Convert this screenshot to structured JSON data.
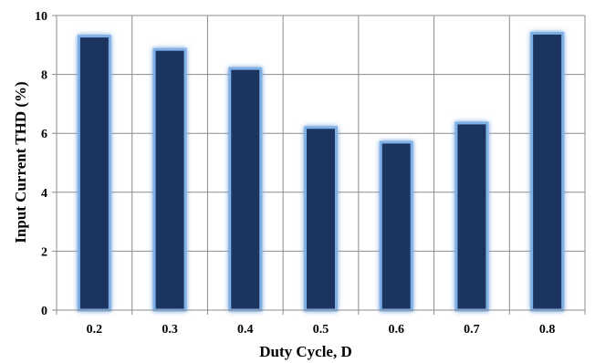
{
  "chart_data": {
    "type": "bar",
    "categories": [
      "0.2",
      "0.3",
      "0.4",
      "0.5",
      "0.6",
      "0.7",
      "0.8"
    ],
    "values": [
      9.3,
      8.85,
      8.2,
      6.2,
      5.7,
      6.35,
      9.4
    ],
    "xlabel": "Duty Cycle, D",
    "ylabel": "Input Current THD (%)",
    "ylim": [
      0,
      10
    ],
    "yticks": [
      "0",
      "2",
      "4",
      "6",
      "8",
      "10"
    ],
    "grid": true,
    "legend": "none",
    "bar_color": "#1b3660",
    "glow_color": "#7fb0e6"
  }
}
